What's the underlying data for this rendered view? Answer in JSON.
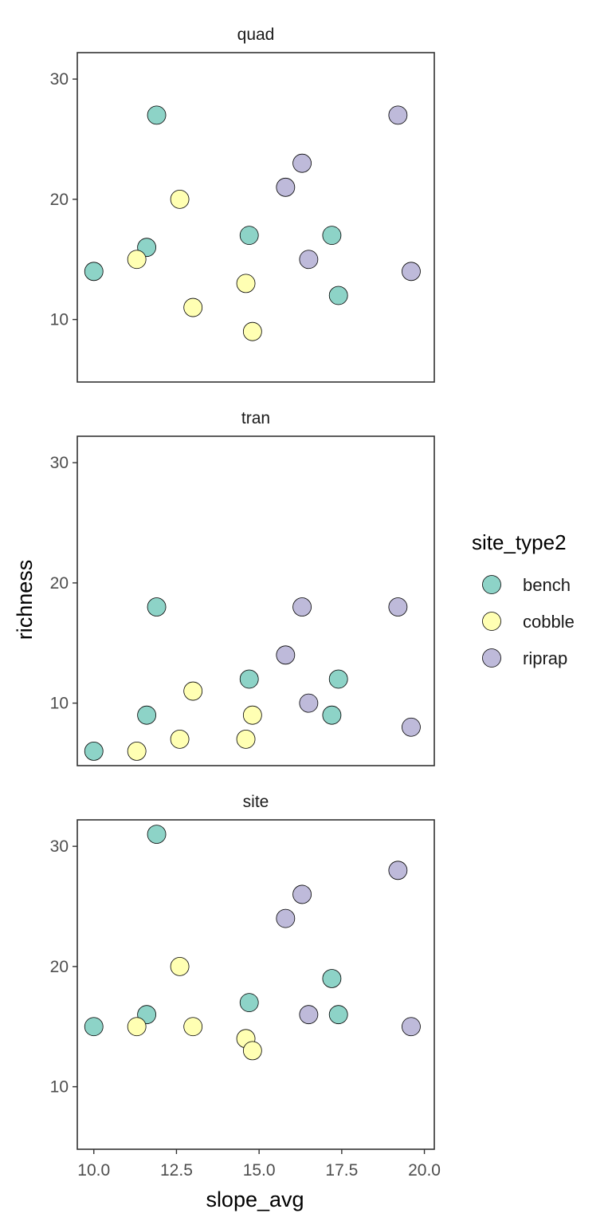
{
  "chart_data": {
    "type": "scatter",
    "facets": [
      "quad",
      "tran",
      "site"
    ],
    "xlabel": "slope_avg",
    "ylabel": "richness",
    "xlim": [
      9.5,
      20.3
    ],
    "ylim": [
      4.8,
      32.2
    ],
    "xticks": [
      "10.0",
      "12.5",
      "15.0",
      "17.5",
      "20.0"
    ],
    "yticks": [
      "10",
      "20",
      "30"
    ],
    "grid": false,
    "legend": {
      "title": "site_type2",
      "position": "right",
      "items": [
        {
          "label": "bench",
          "color": "#8DD3C7"
        },
        {
          "label": "cobble",
          "color": "#FFFFB3"
        },
        {
          "label": "riprap",
          "color": "#BEBADA"
        }
      ]
    },
    "panels": [
      {
        "facet": "quad",
        "points": [
          {
            "x": 10.0,
            "y": 14,
            "group": "bench"
          },
          {
            "x": 11.6,
            "y": 16,
            "group": "bench"
          },
          {
            "x": 11.9,
            "y": 27,
            "group": "bench"
          },
          {
            "x": 14.7,
            "y": 17,
            "group": "bench"
          },
          {
            "x": 17.2,
            "y": 17,
            "group": "bench"
          },
          {
            "x": 17.4,
            "y": 12,
            "group": "bench"
          },
          {
            "x": 11.3,
            "y": 15,
            "group": "cobble"
          },
          {
            "x": 12.6,
            "y": 20,
            "group": "cobble"
          },
          {
            "x": 13.0,
            "y": 11,
            "group": "cobble"
          },
          {
            "x": 14.6,
            "y": 13,
            "group": "cobble"
          },
          {
            "x": 14.8,
            "y": 9,
            "group": "cobble"
          },
          {
            "x": 15.8,
            "y": 21,
            "group": "riprap"
          },
          {
            "x": 16.3,
            "y": 23,
            "group": "riprap"
          },
          {
            "x": 16.5,
            "y": 15,
            "group": "riprap"
          },
          {
            "x": 19.2,
            "y": 27,
            "group": "riprap"
          },
          {
            "x": 19.6,
            "y": 14,
            "group": "riprap"
          }
        ]
      },
      {
        "facet": "tran",
        "points": [
          {
            "x": 10.0,
            "y": 6,
            "group": "bench"
          },
          {
            "x": 11.6,
            "y": 9,
            "group": "bench"
          },
          {
            "x": 11.9,
            "y": 18,
            "group": "bench"
          },
          {
            "x": 14.7,
            "y": 12,
            "group": "bench"
          },
          {
            "x": 17.2,
            "y": 9,
            "group": "bench"
          },
          {
            "x": 17.4,
            "y": 12,
            "group": "bench"
          },
          {
            "x": 11.3,
            "y": 6,
            "group": "cobble"
          },
          {
            "x": 12.6,
            "y": 7,
            "group": "cobble"
          },
          {
            "x": 13.0,
            "y": 11,
            "group": "cobble"
          },
          {
            "x": 14.6,
            "y": 7,
            "group": "cobble"
          },
          {
            "x": 14.8,
            "y": 9,
            "group": "cobble"
          },
          {
            "x": 15.8,
            "y": 14,
            "group": "riprap"
          },
          {
            "x": 16.3,
            "y": 18,
            "group": "riprap"
          },
          {
            "x": 16.5,
            "y": 10,
            "group": "riprap"
          },
          {
            "x": 19.2,
            "y": 18,
            "group": "riprap"
          },
          {
            "x": 19.6,
            "y": 8,
            "group": "riprap"
          }
        ]
      },
      {
        "facet": "site",
        "points": [
          {
            "x": 10.0,
            "y": 15,
            "group": "bench"
          },
          {
            "x": 11.6,
            "y": 16,
            "group": "bench"
          },
          {
            "x": 11.9,
            "y": 31,
            "group": "bench"
          },
          {
            "x": 14.7,
            "y": 17,
            "group": "bench"
          },
          {
            "x": 17.2,
            "y": 19,
            "group": "bench"
          },
          {
            "x": 17.4,
            "y": 16,
            "group": "bench"
          },
          {
            "x": 11.3,
            "y": 15,
            "group": "cobble"
          },
          {
            "x": 12.6,
            "y": 20,
            "group": "cobble"
          },
          {
            "x": 13.0,
            "y": 15,
            "group": "cobble"
          },
          {
            "x": 14.6,
            "y": 14,
            "group": "cobble"
          },
          {
            "x": 14.8,
            "y": 13,
            "group": "cobble"
          },
          {
            "x": 15.8,
            "y": 24,
            "group": "riprap"
          },
          {
            "x": 16.3,
            "y": 26,
            "group": "riprap"
          },
          {
            "x": 16.5,
            "y": 16,
            "group": "riprap"
          },
          {
            "x": 19.2,
            "y": 28,
            "group": "riprap"
          },
          {
            "x": 19.6,
            "y": 15,
            "group": "riprap"
          }
        ]
      }
    ]
  }
}
